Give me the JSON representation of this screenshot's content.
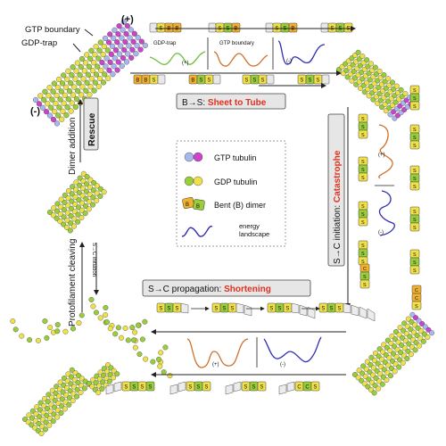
{
  "labels": {
    "gtp_boundary": "GTP boundary",
    "gdp_trap": "GDP-trap",
    "plus_end": "(+)",
    "minus_end": "(-)",
    "dimer_addition": "Dimer addition",
    "rescue": "Rescue",
    "protofilament_cleaving": "Protofilament cleaving",
    "s_to_c_initiation_small": "S→C initiation"
  },
  "top_panel": {
    "inset_labels": [
      "GDP-trap",
      "GTP boundary"
    ],
    "inset_signs": [
      "(+)",
      "(-)"
    ],
    "dimer_row_top": [
      "S B B",
      "S S B",
      "S S B",
      "S S S"
    ],
    "dimer_row_bottom": [
      "B B S",
      "B S S",
      "S S S",
      "S S S"
    ]
  },
  "sheet_to_tube": {
    "prefix": "B→S: ",
    "highlight": "Sheet to Tube"
  },
  "catastrophe": {
    "prefix": "S→C initiation: ",
    "highlight": "Catastrophe"
  },
  "shortening": {
    "prefix": "S→C propagation: ",
    "highlight": "Shortening"
  },
  "legend": {
    "items": [
      {
        "label": "GTP tubulin"
      },
      {
        "label": "GDP tubulin"
      },
      {
        "label": "Bent (B) dimer"
      },
      {
        "label": "energy landscape"
      }
    ]
  },
  "right_panel": {
    "signs": [
      "(+)",
      "(-)"
    ]
  },
  "bottom_panel": {
    "signs": [
      "(+)",
      "(-)"
    ]
  },
  "colors": {
    "gtp_blue": "#a8b8ee",
    "gtp_magenta": "#cc44cc",
    "gdp_green": "#9acd3a",
    "gdp_yellow": "#f0e04a",
    "bent_orange": "#f0b030",
    "energy_green": "#6fbf3f",
    "energy_orange": "#d0702a",
    "energy_blue": "#2f2fb0",
    "highlight_red": "#e0301e"
  }
}
